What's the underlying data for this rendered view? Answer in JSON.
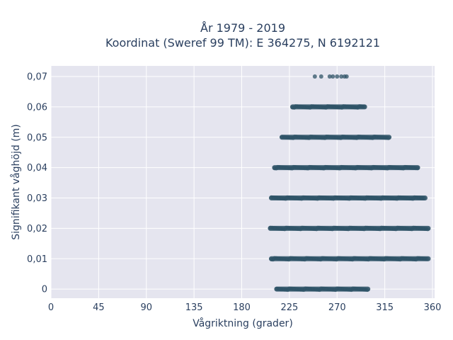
{
  "chart_data": {
    "type": "scatter",
    "title_lines": [
      "År 1979 - 2019",
      "Koordinat (Sweref 99 TM): E 364275, N 6192121"
    ],
    "xlabel": "Vågriktning (grader)",
    "ylabel": "Signifikant våghöjd (m)",
    "xlim": [
      0,
      362
    ],
    "ylim": [
      -0.003,
      0.0735
    ],
    "x_ticks": [
      0,
      45,
      90,
      135,
      180,
      225,
      270,
      315,
      360
    ],
    "x_tick_labels": [
      "0",
      "45",
      "90",
      "135",
      "180",
      "225",
      "270",
      "315",
      "360"
    ],
    "y_ticks": [
      0,
      0.01,
      0.02,
      0.03,
      0.04,
      0.05,
      0.06,
      0.07
    ],
    "y_tick_labels": [
      "0",
      "0,01",
      "0,02",
      "0,03",
      "0,04",
      "0,05",
      "0,06",
      "0,07"
    ],
    "grid": true,
    "marker_color": "#2e5266",
    "plot_bg": "#e5e5ef",
    "bands": [
      {
        "y": 0.0,
        "x_min": 213,
        "x_max": 299
      },
      {
        "y": 0.01,
        "x_min": 208,
        "x_max": 356
      },
      {
        "y": 0.02,
        "x_min": 207,
        "x_max": 356
      },
      {
        "y": 0.03,
        "x_min": 208,
        "x_max": 353
      },
      {
        "y": 0.04,
        "x_min": 211,
        "x_max": 346
      },
      {
        "y": 0.05,
        "x_min": 218,
        "x_max": 319
      },
      {
        "y": 0.06,
        "x_min": 228,
        "x_max": 296
      }
    ],
    "sparse_points": [
      {
        "y": 0.07,
        "x": 249
      },
      {
        "y": 0.07,
        "x": 255
      },
      {
        "y": 0.07,
        "x": 263
      },
      {
        "y": 0.07,
        "x": 266
      },
      {
        "y": 0.07,
        "x": 270
      },
      {
        "y": 0.07,
        "x": 274
      },
      {
        "y": 0.07,
        "x": 277
      },
      {
        "y": 0.07,
        "x": 279
      }
    ]
  }
}
